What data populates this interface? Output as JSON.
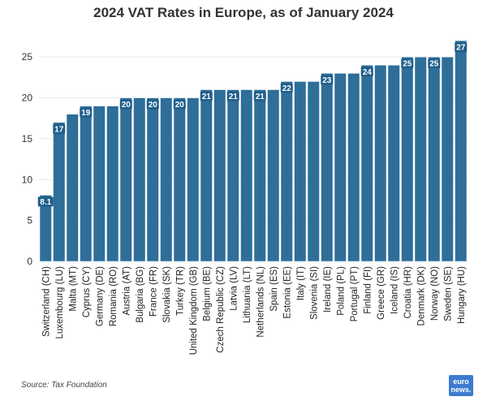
{
  "chart_data": {
    "type": "bar",
    "title": "2024 VAT Rates in Europe, as of January 2024",
    "categories": [
      "Switzerland (CH)",
      "Luxembourg (LU)",
      "Malta (MT)",
      "Cyprus (CY)",
      "Germany (DE)",
      "Romania (RO)",
      "Austria (AT)",
      "Bulgaria (BG)",
      "France (FR)",
      "Slovakia (SK)",
      "Turkey (TR)",
      "United Kingdom (GB)",
      "Belgium (BE)",
      "Czech Republic (CZ)",
      "Latvia (LV)",
      "Lithuania (LT)",
      "Netherlands (NL)",
      "Spain (ES)",
      "Estonia (EE)",
      "Italy (IT)",
      "Slovenia (SI)",
      "Ireland (IE)",
      "Poland (PL)",
      "Portugal (PT)",
      "Finland (FI)",
      "Greece (GR)",
      "Iceland (IS)",
      "Croatia (HR)",
      "Denmark (DK)",
      "Norway (NO)",
      "Sweden (SE)",
      "Hungary (HU)"
    ],
    "values": [
      8.1,
      17,
      18,
      19,
      19,
      19,
      20,
      20,
      20,
      20,
      20,
      20,
      21,
      21,
      21,
      21,
      21,
      21,
      22,
      22,
      22,
      23,
      23,
      23,
      24,
      24,
      24,
      25,
      25,
      25,
      25,
      27
    ],
    "data_labels": [
      "8.1",
      "17",
      "",
      "19",
      "",
      "",
      "20",
      "",
      "20",
      "",
      "20",
      "",
      "21",
      "",
      "21",
      "",
      "21",
      "",
      "22",
      "",
      "",
      "23",
      "",
      "",
      "24",
      "",
      "",
      "25",
      "",
      "25",
      "",
      "27"
    ],
    "yticks": [
      "0",
      "5",
      "10",
      "15",
      "20",
      "25"
    ],
    "ylim": [
      0,
      28
    ],
    "xlabel": "",
    "ylabel": "",
    "grid": true,
    "colors": {
      "bar": "#2e6e99",
      "bar_edge": "#ffffff",
      "label_bg": "#1f5f8a",
      "grid": "#e6e6e6"
    }
  },
  "source": "Source: Tax Foundation",
  "logo": {
    "line1": "euro",
    "line2": "news."
  }
}
